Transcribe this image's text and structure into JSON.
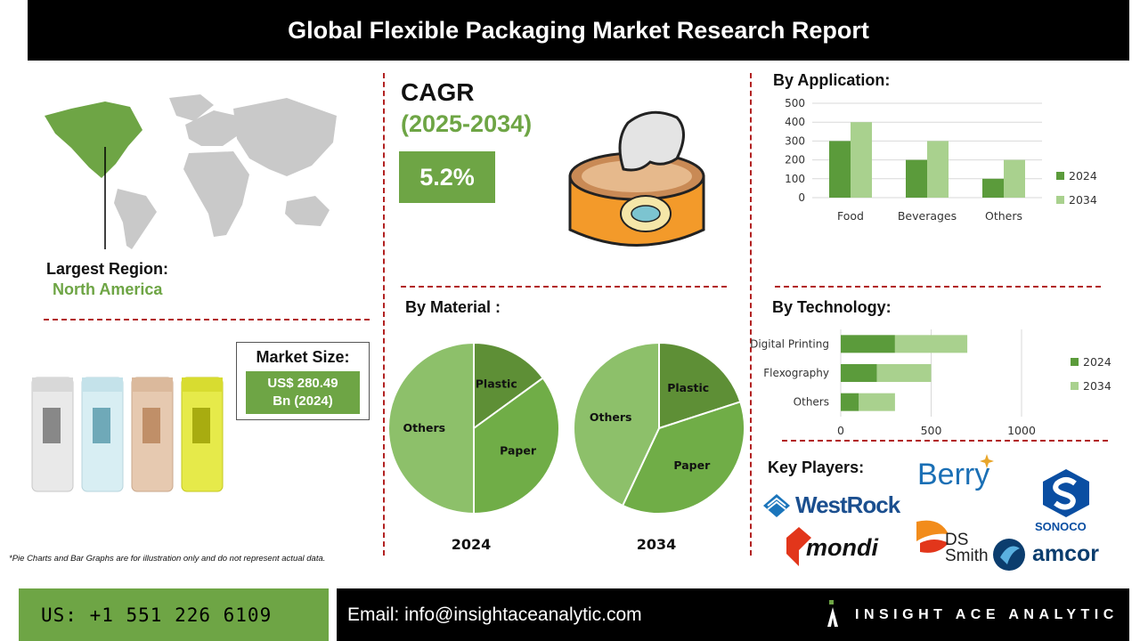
{
  "title": "Global Flexible Packaging Market Research Report",
  "cagr": {
    "label": "CAGR",
    "years": "(2025-2034)",
    "value": "5.2%"
  },
  "region": {
    "label": "Largest Region:",
    "value": "North America"
  },
  "market_size": {
    "label": "Market Size:",
    "line1": "US$ 280.49",
    "line2": "Bn (2024)"
  },
  "disclaimer": "*Pie Charts and Bar Graphs are for illustration only and do not represent actual data.",
  "sections": {
    "application": "By Application:",
    "material": "By Material :",
    "technology": "By Technology:",
    "key_players": "Key Players:"
  },
  "key_players": [
    "WestRock",
    "Berry",
    "SONOCO",
    "mondi",
    "DS Smith",
    "amcor"
  ],
  "footer": {
    "phone": "US: +1 551 226 6109",
    "email": "Email: info@insightaceanalytic.com",
    "brand": "INSIGHT ACE ANALYTIC"
  },
  "colors": {
    "accent": "#6ea545",
    "dark_green": "#5b9b3b",
    "light_green": "#a9d18e",
    "divider": "#b22222",
    "pie_dark": "#5e8f36",
    "pie_mid": "#70ad47",
    "pie_light": "#8dc06a"
  },
  "chart_data": [
    {
      "type": "bar",
      "title": "By Application:",
      "categories": [
        "Food",
        "Beverages",
        "Others"
      ],
      "series": [
        {
          "name": "2024",
          "values": [
            300,
            200,
            100
          ]
        },
        {
          "name": "2034",
          "values": [
            400,
            300,
            200
          ]
        }
      ],
      "ylim": [
        0,
        500
      ],
      "yticks": [
        0,
        100,
        200,
        300,
        400,
        500
      ],
      "grid": true,
      "legend": "right"
    },
    {
      "type": "bar",
      "orientation": "horizontal",
      "stacked": true,
      "title": "By Technology:",
      "categories": [
        "Digital Printing",
        "Flexography",
        "Others"
      ],
      "series": [
        {
          "name": "2024",
          "values": [
            300,
            200,
            100
          ]
        },
        {
          "name": "2034",
          "values": [
            400,
            300,
            200
          ]
        }
      ],
      "xlim": [
        0,
        1000
      ],
      "xticks": [
        0,
        500,
        1000
      ],
      "grid": true,
      "legend": "right"
    },
    {
      "type": "pie",
      "title": "2024",
      "labels": [
        "Plastic",
        "Paper",
        "Others"
      ],
      "values": [
        15,
        35,
        50
      ]
    },
    {
      "type": "pie",
      "title": "2034",
      "labels": [
        "Plastic",
        "Paper",
        "Others"
      ],
      "values": [
        20,
        37,
        43
      ]
    }
  ]
}
